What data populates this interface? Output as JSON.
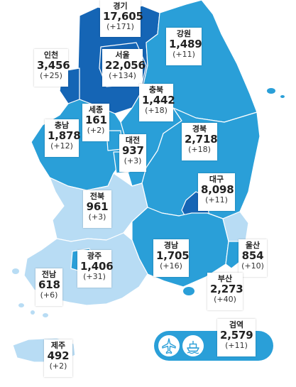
{
  "colors": {
    "sea": "#ffffff",
    "level_high": "#1565b5",
    "level_mid": "#2a9fd8",
    "level_low": "#b8dcf4",
    "border": "#ffffff",
    "label_bg": "#ffffff",
    "text": "#222222"
  },
  "regions": [
    {
      "key": "gyeonggi",
      "name": "경기",
      "count": "17,605",
      "change": "(+171)",
      "level": "high"
    },
    {
      "key": "gangwon",
      "name": "강원",
      "count": "1,489",
      "change": "(+11)",
      "level": "mid"
    },
    {
      "key": "incheon",
      "name": "인천",
      "count": "3,456",
      "change": "(+25)",
      "level": "high"
    },
    {
      "key": "seoul",
      "name": "서울",
      "count": "22,056",
      "change": "(+134)",
      "level": "high"
    },
    {
      "key": "chungbuk",
      "name": "충북",
      "count": "1,442",
      "change": "(+18)",
      "level": "mid"
    },
    {
      "key": "sejong",
      "name": "세종",
      "count": "161",
      "change": "(+2)",
      "level": "mid"
    },
    {
      "key": "gyeongbuk",
      "name": "경북",
      "count": "2,718",
      "change": "(+18)",
      "level": "mid"
    },
    {
      "key": "daejeon",
      "name": "대전",
      "count": "937",
      "change": "(+3)",
      "level": "mid"
    },
    {
      "key": "chungnam",
      "name": "충남",
      "count": "1,878",
      "change": "(+12)",
      "level": "mid"
    },
    {
      "key": "daegu",
      "name": "대구",
      "count": "8,098",
      "change": "(+11)",
      "level": "high"
    },
    {
      "key": "jeonbuk",
      "name": "전북",
      "count": "961",
      "change": "(+3)",
      "level": "low"
    },
    {
      "key": "ulsan",
      "name": "울산",
      "count": "854",
      "change": "(+10)",
      "level": "low"
    },
    {
      "key": "gwangju",
      "name": "광주",
      "count": "1,406",
      "change": "(+31)",
      "level": "mid"
    },
    {
      "key": "gyeongnam",
      "name": "경남",
      "count": "1,705",
      "change": "(+16)",
      "level": "mid"
    },
    {
      "key": "jeonnam",
      "name": "전남",
      "count": "618",
      "change": "(+6)",
      "level": "low"
    },
    {
      "key": "busan",
      "name": "부산",
      "count": "2,273",
      "change": "(+40)",
      "level": "mid"
    },
    {
      "key": "quarantine",
      "name": "검역",
      "count": "2,579",
      "change": "(+11)",
      "level": "mid"
    },
    {
      "key": "jeju",
      "name": "제주",
      "count": "492",
      "change": "(+2)",
      "level": "low"
    }
  ],
  "port_icons": [
    "airplane-icon",
    "ship-icon"
  ]
}
